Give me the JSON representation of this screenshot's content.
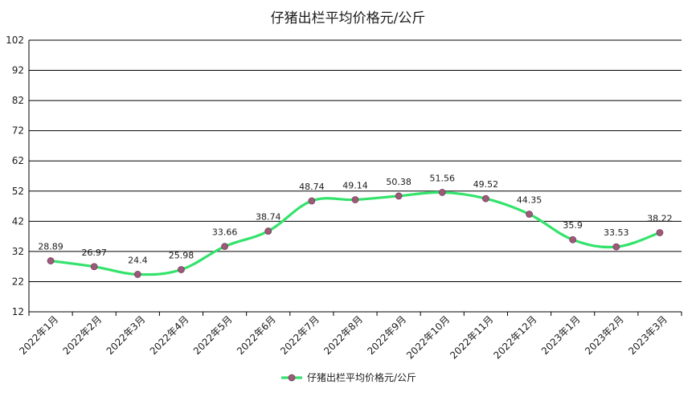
{
  "chart_data": {
    "type": "line",
    "title": "仔猪出栏平均价格元/公斤",
    "xlabel": "",
    "ylabel": "",
    "categories": [
      "2022年1月",
      "2022年2月",
      "2022年3月",
      "2022年4月",
      "2022年5月",
      "2022年6月",
      "2022年7月",
      "2022年8月",
      "2022年9月",
      "2022年10月",
      "2022年11月",
      "2022年12月",
      "2023年1月",
      "2023年2月",
      "2023年3月"
    ],
    "series": [
      {
        "name": "仔猪出栏平均价格元/公斤",
        "values": [
          28.89,
          26.97,
          24.4,
          25.98,
          33.66,
          38.74,
          48.74,
          49.14,
          50.38,
          51.56,
          49.52,
          44.35,
          35.9,
          33.53,
          38.22
        ],
        "labels": [
          "28.89",
          "26.97",
          "24.4",
          "25.98",
          "33.66",
          "38.74",
          "48.74",
          "49.14",
          "50.38",
          "51.56",
          "49.52",
          "44.35",
          "35.9",
          "33.53",
          "38.22"
        ]
      }
    ],
    "ylim": [
      12,
      102
    ],
    "yticks": [
      "12",
      "22",
      "32",
      "42",
      "52",
      "62",
      "72",
      "82",
      "92",
      "102"
    ],
    "grid": true,
    "legend": "bottom-center",
    "colors": {
      "line": "#33e36b",
      "marker": "#9b5a7a",
      "grid": "#000000",
      "text": "#1a1a1a"
    }
  }
}
